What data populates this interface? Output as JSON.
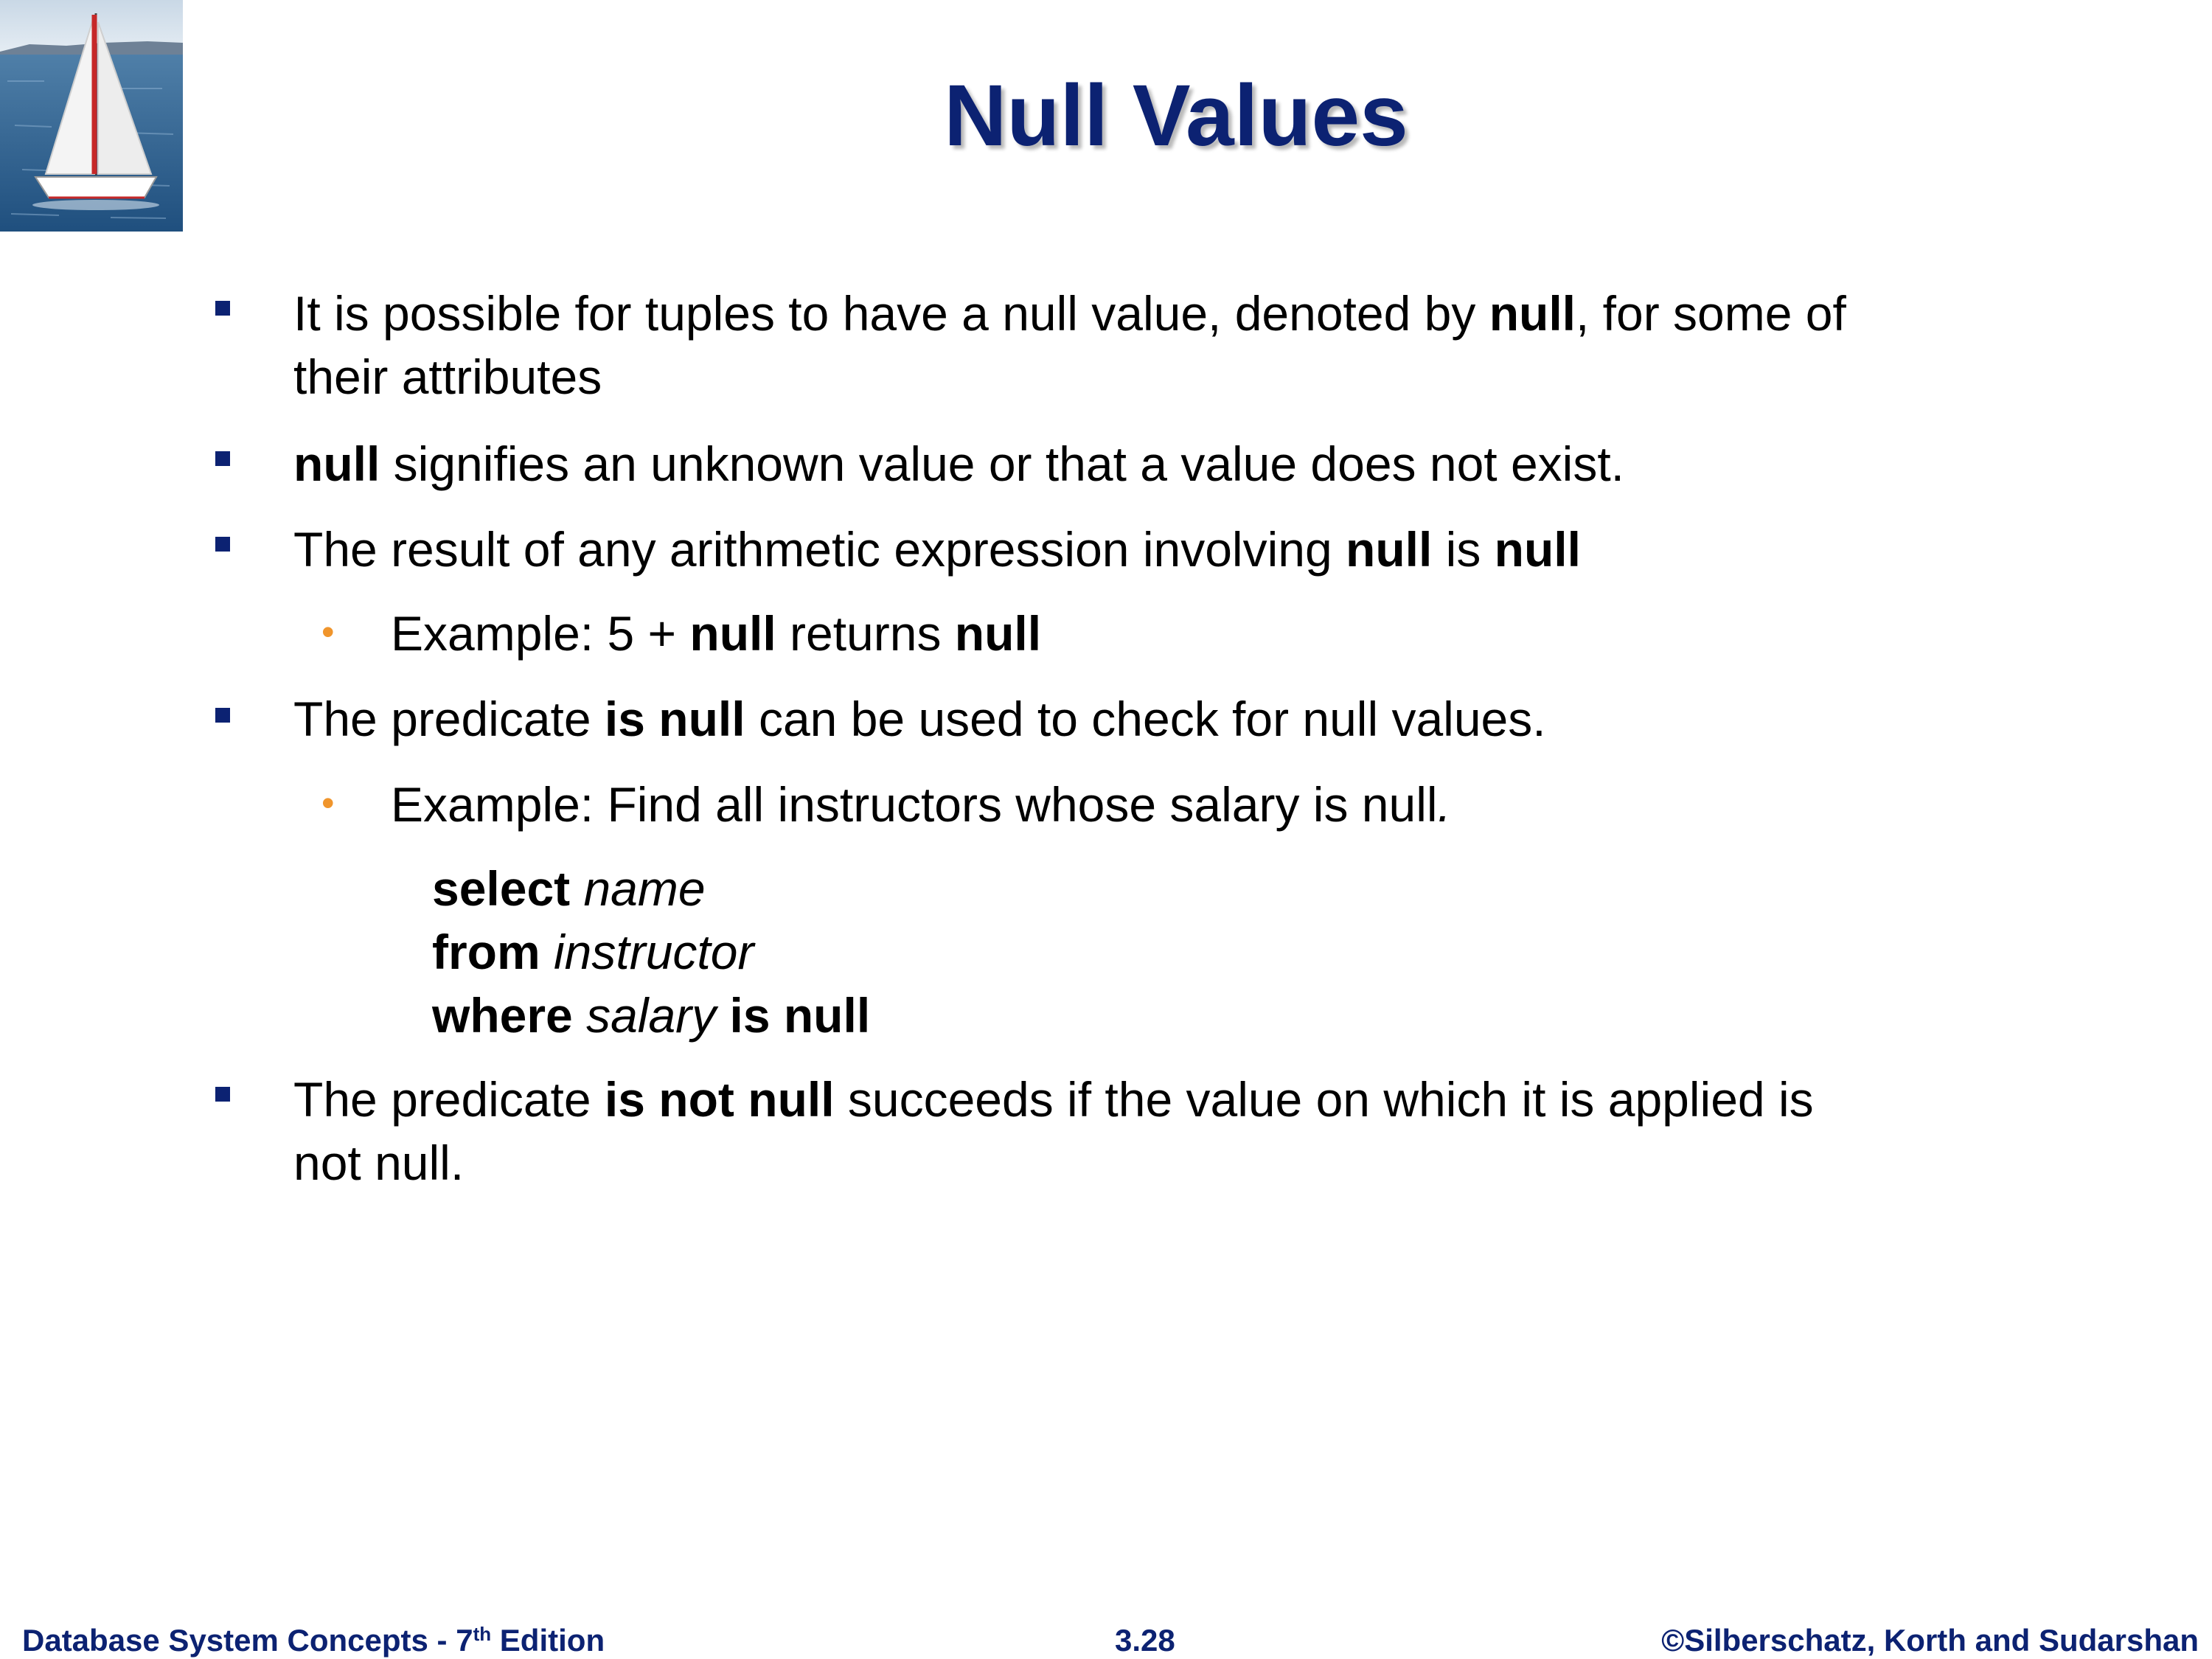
{
  "slide": {
    "title": "Null Values",
    "logo": "sailboat-logo"
  },
  "bullets": {
    "b1": {
      "p1": "It is possible for tuples to have a null value, denoted by ",
      "k1": "null",
      "p2": ", for some of",
      "line2": "their attributes"
    },
    "b2": {
      "k1": "null",
      "p1": " signifies an unknown value or that a value does not exist."
    },
    "b3": {
      "p1": "The result of any arithmetic expression involving ",
      "k1": "null",
      "p2": " is ",
      "k2": "null"
    },
    "b3a": {
      "p1": "Example:  5 + ",
      "k1": "null",
      "p2": "  returns ",
      "k2": "null"
    },
    "b4": {
      "p1": "The predicate  ",
      "k1": "is null",
      "p2": " can be used to check for null values."
    },
    "b4a": {
      "p1": "Example: Find all instructors whose salary is null",
      "p2": "."
    },
    "sql": {
      "kw_select": "select",
      "name": " name",
      "kw_from": "from",
      "table": " instructor",
      "kw_where": "where",
      "attr": " salary",
      "kw_isnull": " is null"
    },
    "b5": {
      "p1": "The predicate ",
      "k1": "is not null",
      "p2": " succeeds if the value on which it is applied is",
      "line2": "not null."
    }
  },
  "footer": {
    "book_prefix": "Database System Concepts - 7",
    "book_sup": "th",
    "book_suffix": " Edition",
    "page": "3.28",
    "copyright": "©Silberschatz, Korth and Sudarshan"
  },
  "colors": {
    "title": "#0c2272",
    "bullet_l1": "#0c2272",
    "bullet_l2": "#f0952c",
    "footer": "#0c2272"
  }
}
